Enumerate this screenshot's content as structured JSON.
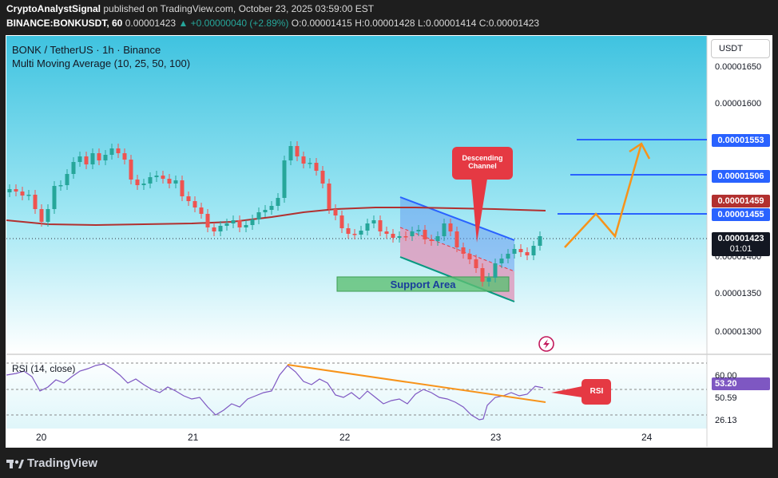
{
  "header": {
    "author": "CryptoAnalystSignal",
    "published": "published on TradingView.com, October 23, 2025 03:59:00 EST",
    "symbol_line": "BINANCE:BONKUSDT, 60",
    "last": "0.00001423",
    "change": "▲ +0.00000040 (+2.89%)",
    "o": "O:0.00001415",
    "h": "H:0.00001428",
    "l": "L:0.00001414",
    "c": "C:0.00001423"
  },
  "chart": {
    "title": "BONK / TetherUS · 1h · Binance",
    "indicator": "Multi Moving Average (10, 25, 50, 100)",
    "currency_button": "USDT",
    "rsi_legend": "RSI (14, close)",
    "time_remaining": "01:01"
  },
  "price_axis": [
    "0.00001650",
    "0.00001600",
    "0.00001400",
    "0.00001350",
    "0.00001300"
  ],
  "price_tags": {
    "level1": "0.00001553",
    "level2": "0.00001506",
    "ma": "0.00001459",
    "level3": "0.00001455",
    "current": "0.00001423"
  },
  "rsi_axis": {
    "upper": "60.00",
    "current": "53.20",
    "mid": "50.59",
    "lower": "26.13"
  },
  "time_axis": [
    "20",
    "21",
    "22",
    "23",
    "24"
  ],
  "annotations": {
    "support": "Support Area",
    "callout": "Descending Channel",
    "rsi_callout": "RSI"
  },
  "footer": {
    "brand": "TradingView"
  },
  "colors": {
    "up": "#26a69a",
    "down": "#ef5350",
    "ma": "#b2302f",
    "level": "#2962ff",
    "arrow": "#f7931a",
    "callout": "#e53943"
  },
  "chart_data": {
    "type": "candlestick",
    "symbol": "BONKUSDT",
    "interval": "1h",
    "ylim": [
      1.28e-05,
      1.67e-05
    ],
    "horizontal_levels": [
      1.553e-05,
      1.506e-05,
      1.455e-05
    ],
    "moving_average_last": 1.459e-05,
    "last_price": 1.423e-05,
    "rsi": {
      "last": 53.2,
      "levels": [
        60.0,
        50.59,
        26.13
      ]
    }
  }
}
